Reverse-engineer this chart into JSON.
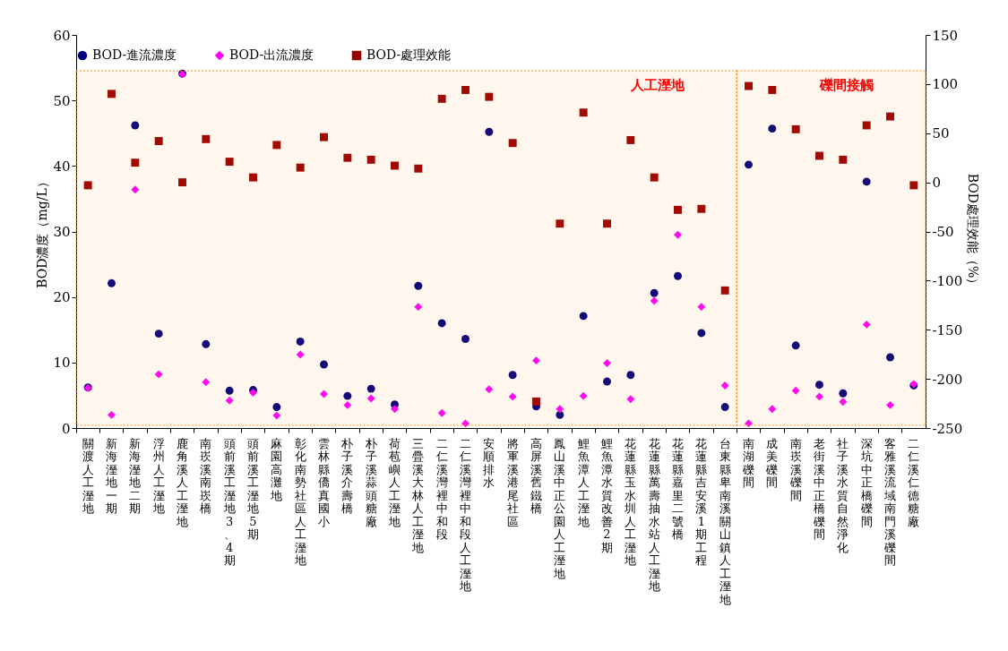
{
  "chart_data": {
    "type": "scatter",
    "categories": [
      "關渡人工溼地",
      "新海溼地一期",
      "新海溼地二期",
      "浮州人工溼地",
      "鹿角溪人工溼地",
      "南崁溪南崁橋",
      "頭前溪工溼地3、4 期",
      "頭前溪工溼地5期",
      "麻園高灘地",
      "彰化南勢社區人工溼地",
      "雲林縣僑真國小",
      "朴子溪介壽橋",
      "朴子溪蒜頭糖廠",
      "荷苞嶼人工溼地",
      "三疊溪大林人工溼地",
      "二仁溪灣裡中和段",
      "二仁溪灣裡中和段人工溼地",
      "安順排水",
      "將軍溪港尾社區",
      "高屏溪舊鐵橋",
      "鳳山溪中正公園人工溼地",
      "鯉魚潭人工溼地",
      "鯉魚潭水質改善2期",
      "花蓮縣玉水圳人工溼地",
      "花蓮縣萬壽抽水站人工溼地",
      "花蓮縣嘉里二號橋",
      "花蓮縣吉安溪1期工程",
      "台東縣卑南溪關山鎮人工溼地",
      "南湖礫間",
      "成美礫間",
      "南崁溪礫間",
      "老街溪中正橋礫間",
      "社子溪水質自然淨化",
      "深坑中正橋礫間",
      "客雅溪流域南門溪礫間",
      "二仁溪仁德糖廠"
    ],
    "ylabel": "BOD濃度（mg/L）",
    "y2label": "BOD處理效能（%）",
    "ylim": [
      0,
      60
    ],
    "yticks": [
      0,
      10,
      20,
      30,
      40,
      50,
      60
    ],
    "y2lim": [
      -250,
      150
    ],
    "y2ticks": [
      -250,
      -200,
      -150,
      -100,
      -50,
      0,
      50,
      100,
      150
    ],
    "legend": "top",
    "grid": false,
    "series": [
      {
        "name": "BOD-進流濃度",
        "color": "#000080",
        "marker": "circle",
        "values": [
          6.2,
          22.1,
          46.2,
          14.4,
          54.1,
          12.8,
          5.7,
          5.8,
          3.2,
          13.2,
          9.7,
          4.9,
          6.0,
          3.6,
          21.7,
          16.0,
          13.6,
          45.2,
          8.1,
          3.3,
          2.0,
          17.1,
          7.1,
          8.1,
          20.6,
          23.2,
          14.5,
          3.2,
          40.2,
          45.7,
          12.6,
          6.6,
          5.3,
          37.6,
          10.8,
          6.5
        ]
      },
      {
        "name": "BOD-出流濃度",
        "color": "#ff00ff",
        "marker": "diamond",
        "values": [
          6.1,
          2.0,
          36.4,
          8.2,
          54.0,
          7.0,
          4.2,
          5.4,
          1.9,
          11.2,
          5.2,
          3.5,
          4.5,
          2.9,
          18.5,
          2.3,
          0.7,
          5.9,
          4.8,
          10.3,
          2.9,
          4.9,
          9.9,
          4.4,
          19.4,
          29.5,
          18.5,
          6.5,
          0.7,
          2.9,
          5.7,
          4.8,
          4.0,
          15.8,
          3.5,
          6.7
        ]
      },
      {
        "name": "BOD-處理效能",
        "color": "#990000",
        "marker": "square",
        "axis": "y2",
        "values": [
          -3,
          90,
          20,
          42,
          0,
          44,
          21,
          5,
          38,
          15,
          46,
          25,
          23,
          17,
          14,
          85,
          94,
          87,
          40,
          -223,
          -42,
          71,
          -42,
          43,
          5,
          -28,
          -27,
          -110,
          98,
          94,
          54,
          27,
          23,
          58,
          67,
          -3
        ]
      }
    ],
    "bands": [
      {
        "axis": "x",
        "from": "關渡人工溼地",
        "to": "台東縣卑南溪關山鎮人工溼地",
        "label": "人工溼地",
        "color": "#ff8c1a"
      },
      {
        "axis": "x",
        "from": "南湖礫間",
        "to": "二仁溪仁德糖廠",
        "label": "礫間接觸",
        "color": "#ff8c1a"
      }
    ]
  }
}
